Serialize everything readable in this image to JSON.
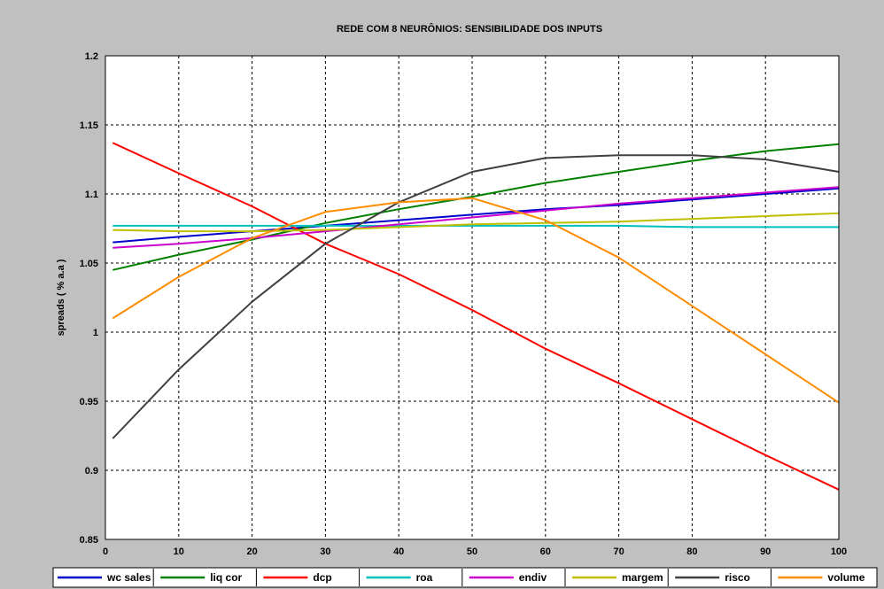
{
  "chart_data": {
    "type": "line",
    "title": "REDE COM 8 NEURÔNIOS: SENSIBILIDADE DOS INPUTS",
    "xlabel": "",
    "ylabel": "spreads ( % a.a )",
    "xlim": [
      0,
      100
    ],
    "ylim": [
      0.85,
      1.2
    ],
    "xticks": [
      "0",
      "10",
      "20",
      "30",
      "40",
      "50",
      "60",
      "70",
      "80",
      "90",
      "100"
    ],
    "yticks": [
      "0.85",
      "0.9",
      "0.95",
      "1",
      "1.05",
      "1.1",
      "1.15",
      "1.2"
    ],
    "grid": true,
    "legend": "bottom",
    "x": [
      1,
      10,
      20,
      30,
      40,
      50,
      60,
      70,
      80,
      90,
      100
    ],
    "series": [
      {
        "name": "wc sales",
        "color": "#0000cc",
        "values": [
          1.065,
          1.069,
          1.073,
          1.077,
          1.081,
          1.085,
          1.089,
          1.092,
          1.096,
          1.1,
          1.104
        ]
      },
      {
        "name": "liq cor",
        "color": "#008000",
        "values": [
          1.045,
          1.056,
          1.067,
          1.079,
          1.089,
          1.098,
          1.108,
          1.116,
          1.124,
          1.131,
          1.136
        ]
      },
      {
        "name": "dcp",
        "color": "#ff0000",
        "values": [
          1.137,
          1.115,
          1.091,
          1.064,
          1.042,
          1.016,
          0.988,
          0.963,
          0.937,
          0.911,
          0.886
        ]
      },
      {
        "name": "roa",
        "color": "#00bfbf",
        "values": [
          1.077,
          1.077,
          1.077,
          1.077,
          1.077,
          1.077,
          1.077,
          1.077,
          1.076,
          1.076,
          1.076
        ]
      },
      {
        "name": "endiv",
        "color": "#cc00cc",
        "values": [
          1.061,
          1.064,
          1.068,
          1.073,
          1.078,
          1.083,
          1.088,
          1.093,
          1.097,
          1.101,
          1.105
        ]
      },
      {
        "name": "margem",
        "color": "#bfbf00",
        "values": [
          1.074,
          1.073,
          1.073,
          1.074,
          1.076,
          1.078,
          1.079,
          1.08,
          1.082,
          1.084,
          1.086
        ]
      },
      {
        "name": "risco",
        "color": "#404040",
        "values": [
          0.923,
          0.973,
          1.022,
          1.064,
          1.094,
          1.116,
          1.126,
          1.128,
          1.128,
          1.125,
          1.116
        ]
      },
      {
        "name": "volume",
        "color": "#ff8c00",
        "values": [
          1.01,
          1.04,
          1.068,
          1.087,
          1.094,
          1.097,
          1.081,
          1.054,
          1.019,
          0.984,
          0.949
        ]
      }
    ]
  }
}
